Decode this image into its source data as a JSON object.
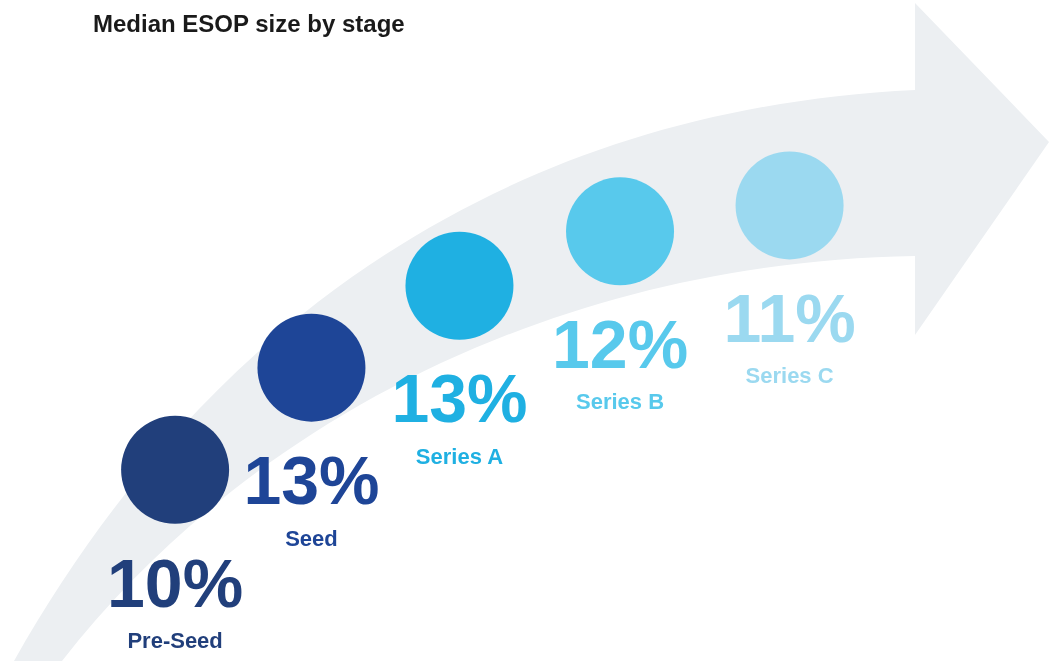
{
  "chart_data": {
    "type": "other",
    "title": "Median ESOP size by stage",
    "categories": [
      "Pre-Seed",
      "Seed",
      "Series A",
      "Series B",
      "Series C"
    ],
    "values": [
      10,
      13,
      13,
      12,
      11
    ],
    "value_labels": [
      "10%",
      "13%",
      "13%",
      "12%",
      "11%"
    ],
    "colors": [
      "#213f7b",
      "#1e4597",
      "#1fb0e2",
      "#58c9ec",
      "#9bd9f0"
    ]
  }
}
